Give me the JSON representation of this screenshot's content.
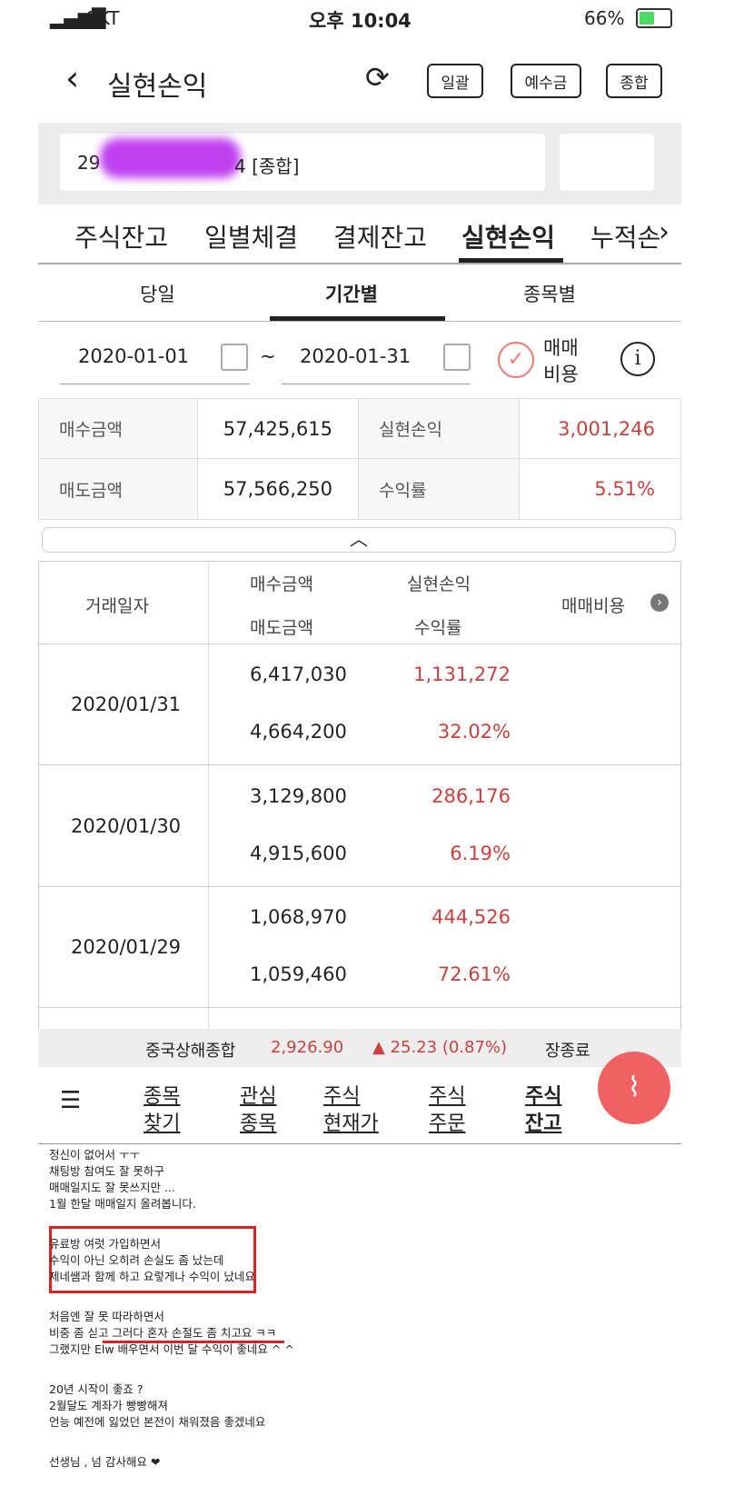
{
  "status": {
    "carrier": "SKT",
    "time": "오후 10:04",
    "battery": "66%"
  },
  "header": {
    "title": "실현손익",
    "buttons": [
      "일괄",
      "예수금",
      "종합"
    ]
  },
  "account": {
    "prefix": "29",
    "suffix": "4 [종합]"
  },
  "tabs": [
    "주식잔고",
    "일별체결",
    "결제잔고",
    "실현손익",
    "누적손"
  ],
  "subtabs": [
    "당일",
    "기간별",
    "종목별"
  ],
  "period": {
    "from": "2020-01-01",
    "sep": "~",
    "to": "2020-01-31",
    "fee_line1": "매매",
    "fee_line2": "비용"
  },
  "summary": [
    [
      "매수금액",
      "57,425,615",
      "실현손익",
      "3,001,246"
    ],
    [
      "매도금액",
      "57,566,250",
      "수익률",
      "5.51%"
    ]
  ],
  "table": {
    "headers": {
      "date": "거래일자",
      "buy": "매수금액",
      "sell": "매도금액",
      "pnl": "실현손익",
      "rate": "수익률",
      "fee": "매매비용"
    },
    "rows": [
      {
        "date": "2020/01/31",
        "buy": "6,417,030",
        "sell": "4,664,200",
        "pnl": "1,131,272",
        "rate": "32.02%"
      },
      {
        "date": "2020/01/30",
        "buy": "3,129,800",
        "sell": "4,915,600",
        "pnl": "286,176",
        "rate": "6.19%"
      },
      {
        "date": "2020/01/29",
        "buy": "1,068,970",
        "sell": "1,059,460",
        "pnl": "444,526",
        "rate": "72.61%"
      }
    ]
  },
  "ticker": {
    "name": "중국상해종합",
    "price": "2,926.90",
    "change": "▲ 25.23 (0.87%)",
    "state": "장종료"
  },
  "nav": [
    [
      "종목",
      "찾기"
    ],
    [
      "관심",
      "종목"
    ],
    [
      "주식",
      "현재가"
    ],
    [
      "주식",
      "주문"
    ],
    [
      "주식",
      "잔고"
    ]
  ],
  "post": [
    [
      "정신이 없어서 ㅜㅜ",
      "채팅방 참여도 잘 못하구",
      "매매일지도 잘 못쓰지만 ...",
      "1월 한달 매매일지 올려봅니다."
    ],
    [
      "유료방 여럿 가입하면서",
      "수익이 아닌 오히려 손실도 좀 났는데",
      "제네쌤과 함께 하고 요렇게나 수익이 났네요"
    ],
    [
      "처음엔 잘 못 따라하면서",
      "비중 좀 싣고 그러다 혼자 손절도 좀 치고요 ㅋㅋ",
      "그랬지만 Elw 배우면서 이번 달 수익이 좋네요 ^ ^"
    ],
    [
      "20년 시작이 좋죠 ?",
      "2월달도 계좌가 빵빵해져",
      "언능 예전에 잃었던 본전이 채워졌음 좋겠네요"
    ],
    [
      "선생님 , 넘 감사해요 ❤"
    ]
  ]
}
